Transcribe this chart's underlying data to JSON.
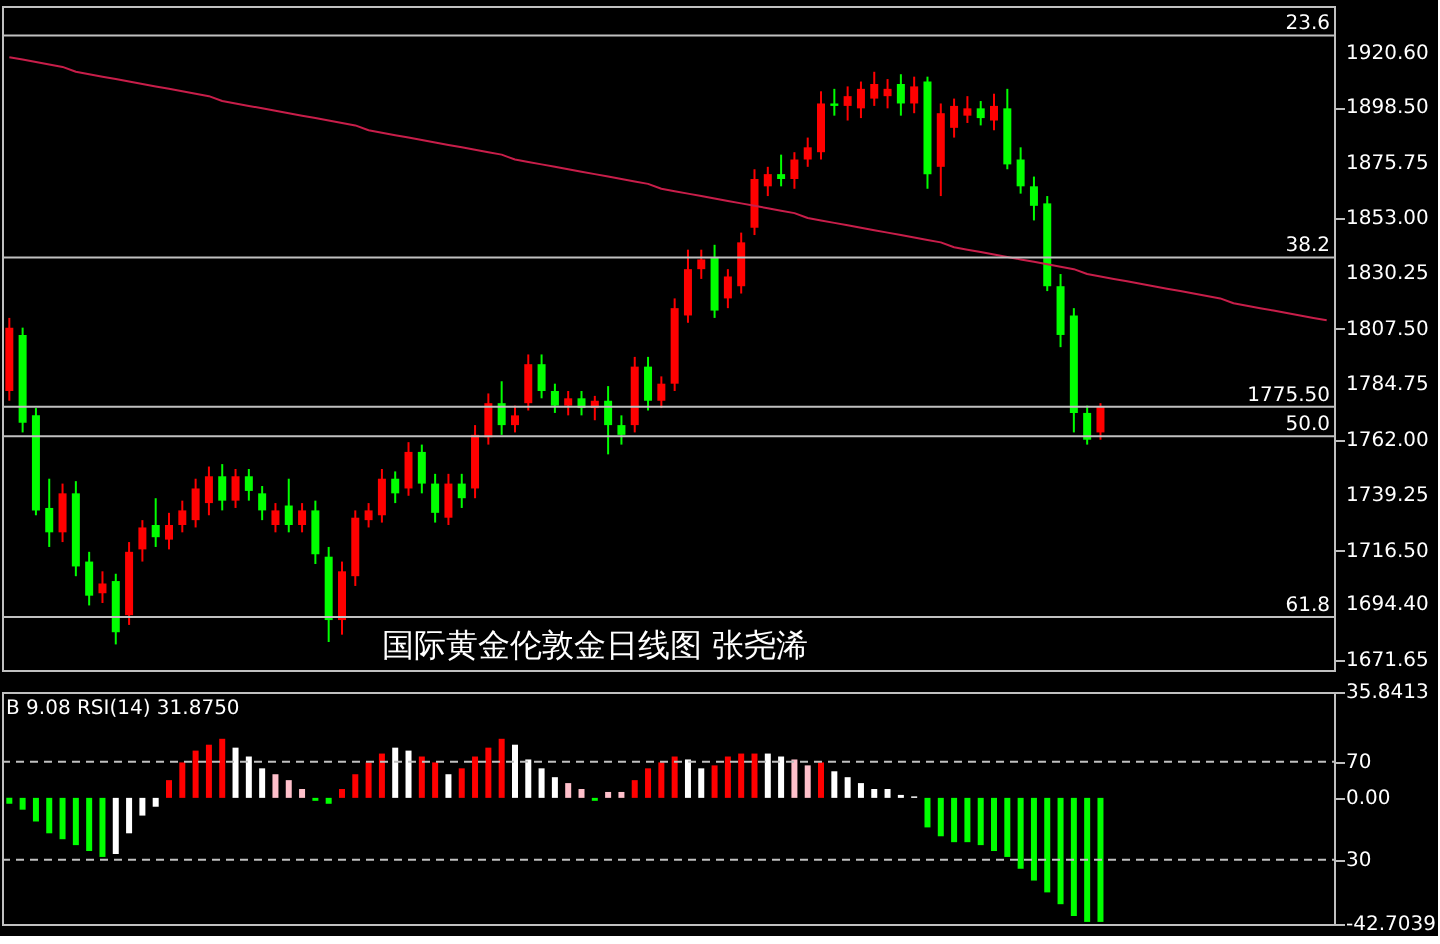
{
  "chart_data": [
    {
      "type": "candlestick",
      "categories": [
        null,
        null,
        null,
        null,
        null,
        null,
        null,
        null,
        null,
        null,
        null,
        null,
        null,
        null,
        null,
        null,
        null,
        null,
        null,
        null,
        null,
        null,
        null,
        null,
        null,
        null,
        null,
        null,
        null,
        null,
        null,
        null,
        null,
        null,
        null,
        null,
        null,
        null,
        null,
        null,
        null,
        null,
        null,
        null,
        null,
        null,
        null,
        null,
        null,
        null,
        null,
        null,
        null,
        null,
        null,
        null,
        null,
        null,
        null,
        null,
        null,
        null,
        null,
        null,
        null,
        null,
        null,
        null,
        null,
        null,
        null,
        null,
        null,
        null,
        null,
        null,
        null,
        null,
        null,
        null,
        null,
        null,
        null,
        null,
        null,
        null,
        null,
        null,
        null,
        null,
        null,
        null,
        null,
        null,
        null,
        null,
        null,
        null,
        null,
        null
      ],
      "ohlc": [
        [
          1782,
          1812,
          1778,
          1808
        ],
        [
          1805,
          1808,
          1765,
          1769
        ],
        [
          1772,
          1775,
          1731,
          1733
        ],
        [
          1734,
          1746,
          1718,
          1724
        ],
        [
          1724,
          1744,
          1720,
          1740
        ],
        [
          1740,
          1745,
          1706,
          1710
        ],
        [
          1712,
          1716,
          1694,
          1698
        ],
        [
          1699,
          1708,
          1695,
          1703
        ],
        [
          1704,
          1707,
          1678,
          1683
        ],
        [
          1690,
          1720,
          1686,
          1716
        ],
        [
          1717,
          1729,
          1712,
          1726
        ],
        [
          1727,
          1738,
          1718,
          1722
        ],
        [
          1721,
          1732,
          1717,
          1727
        ],
        [
          1727,
          1737,
          1724,
          1733
        ],
        [
          1729,
          1746,
          1726,
          1742
        ],
        [
          1736,
          1751,
          1731,
          1747
        ],
        [
          1747,
          1752,
          1733,
          1737
        ],
        [
          1737,
          1750,
          1734,
          1747
        ],
        [
          1747,
          1750,
          1737,
          1741
        ],
        [
          1740,
          1743,
          1729,
          1733
        ],
        [
          1727,
          1736,
          1724,
          1733
        ],
        [
          1735,
          1746,
          1724,
          1727
        ],
        [
          1727,
          1736,
          1724,
          1733
        ],
        [
          1733,
          1737,
          1711,
          1715
        ],
        [
          1714,
          1718,
          1679,
          1688
        ],
        [
          1688,
          1712,
          1682,
          1708
        ],
        [
          1706,
          1733,
          1702,
          1730
        ],
        [
          1729,
          1736,
          1726,
          1733
        ],
        [
          1731,
          1750,
          1728,
          1746
        ],
        [
          1746,
          1749,
          1736,
          1740
        ],
        [
          1742,
          1761,
          1739,
          1757
        ],
        [
          1757,
          1760,
          1740,
          1744
        ],
        [
          1744,
          1748,
          1728,
          1732
        ],
        [
          1730,
          1748,
          1727,
          1744
        ],
        [
          1744,
          1748,
          1734,
          1738
        ],
        [
          1742,
          1768,
          1738,
          1764
        ],
        [
          1763,
          1781,
          1760,
          1777
        ],
        [
          1777,
          1786,
          1764,
          1768
        ],
        [
          1768,
          1776,
          1765,
          1772
        ],
        [
          1777,
          1797,
          1774,
          1793
        ],
        [
          1793,
          1797,
          1779,
          1782
        ],
        [
          1782,
          1785,
          1773,
          1776
        ],
        [
          1776,
          1782,
          1772,
          1779
        ],
        [
          1779,
          1782,
          1772,
          1775
        ],
        [
          1775,
          1780,
          1770,
          1778
        ],
        [
          1778,
          1784,
          1756,
          1768
        ],
        [
          1768,
          1772,
          1760,
          1764
        ],
        [
          1768,
          1796,
          1765,
          1792
        ],
        [
          1792,
          1796,
          1774,
          1778
        ],
        [
          1778,
          1788,
          1775,
          1785
        ],
        [
          1785,
          1820,
          1782,
          1816
        ],
        [
          1813,
          1840,
          1810,
          1832
        ],
        [
          1832,
          1840,
          1828,
          1836
        ],
        [
          1837,
          1842,
          1812,
          1815
        ],
        [
          1820,
          1832,
          1816,
          1829
        ],
        [
          1825,
          1847,
          1822,
          1843
        ],
        [
          1849,
          1873,
          1846,
          1869
        ],
        [
          1866,
          1874,
          1862,
          1871
        ],
        [
          1871,
          1879,
          1866,
          1869
        ],
        [
          1869,
          1880,
          1865,
          1877
        ],
        [
          1877,
          1886,
          1874,
          1882
        ],
        [
          1880,
          1905,
          1877,
          1900
        ],
        [
          1900,
          1906,
          1895,
          1899
        ],
        [
          1899,
          1907,
          1893,
          1903
        ],
        [
          1898,
          1909,
          1894,
          1906
        ],
        [
          1902,
          1913,
          1899,
          1908
        ],
        [
          1903,
          1910,
          1898,
          1906
        ],
        [
          1908,
          1912,
          1895,
          1900
        ],
        [
          1900,
          1911,
          1896,
          1907
        ],
        [
          1909,
          1911,
          1865,
          1871
        ],
        [
          1874,
          1900,
          1862,
          1896
        ],
        [
          1890,
          1902,
          1886,
          1899
        ],
        [
          1895,
          1903,
          1892,
          1898
        ],
        [
          1898,
          1901,
          1891,
          1894
        ],
        [
          1893,
          1904,
          1889,
          1899
        ],
        [
          1898,
          1906,
          1873,
          1875
        ],
        [
          1877,
          1882,
          1863,
          1866
        ],
        [
          1866,
          1870,
          1852,
          1858
        ],
        [
          1859,
          1862,
          1823,
          1825
        ],
        [
          1825,
          1830,
          1800,
          1805
        ],
        [
          1813,
          1816,
          1765,
          1773
        ],
        [
          1773,
          1776,
          1760,
          1762
        ],
        [
          1765,
          1777,
          1762,
          1775.5
        ],
        null,
        null,
        null,
        null,
        null,
        null,
        null,
        null,
        null,
        null,
        null,
        null,
        null,
        null,
        null,
        null,
        null
      ],
      "series": [
        {
          "type": "line",
          "color": "#c81e4a",
          "values": [
            1919,
            1918,
            1917,
            1916,
            1915,
            1913,
            1912,
            1911,
            1910,
            1909,
            1908,
            1907,
            1906,
            1905,
            1904,
            1903,
            1901,
            1900,
            1899,
            1898,
            1897,
            1896,
            1895,
            1894,
            1893,
            1892,
            1891,
            1889,
            1888,
            1887,
            1886,
            1885,
            1884,
            1883,
            1882,
            1881,
            1880,
            1879,
            1877,
            1876,
            1875,
            1874,
            1873,
            1872,
            1871,
            1870,
            1869,
            1868,
            1867,
            1865,
            1864,
            1863,
            1862,
            1861,
            1860,
            1859,
            1858,
            1857,
            1856,
            1855,
            1853,
            1852,
            1851,
            1850,
            1849,
            1848,
            1847,
            1846,
            1845,
            1844,
            1843,
            1841,
            1840,
            1839,
            1838,
            1837,
            1836,
            1835,
            1834,
            1833,
            1832,
            1830,
            1829,
            1828,
            1827,
            1826,
            1825,
            1824,
            1823,
            1822,
            1821,
            1820,
            1818,
            1817,
            1816,
            1815,
            1814,
            1813,
            1812,
            1811
          ]
        }
      ],
      "ylim": [
        1667.5,
        1940
      ],
      "yticks": [
        {
          "value": 1920.6,
          "label": "1920.60"
        },
        {
          "value": 1898.5,
          "label": "1898.50"
        },
        1875.75,
        {
          "value": 1853,
          "label": "1853.00"
        },
        1830.25,
        {
          "value": 1807.5,
          "label": "1807.50"
        },
        1784.75,
        {
          "value": 1762,
          "label": "1762.00"
        },
        1739.25,
        {
          "value": 1716.5,
          "label": "1716.50"
        },
        {
          "value": 1694.4,
          "label": "1694.40"
        },
        1671.65
      ],
      "tick_labels": "y",
      "ref_lines": [
        {
          "axis": "y",
          "value": 1927.9,
          "color": "#c0c0c0"
        },
        {
          "axis": "y",
          "value": 1836.8,
          "color": "#c0c0c0"
        },
        {
          "axis": "y",
          "value": 1775.5,
          "label": "1775.50",
          "color": "#c0c0c0"
        },
        {
          "axis": "y",
          "value": 1763.4,
          "color": "#c0c0c0"
        },
        {
          "axis": "y",
          "value": 1689.3,
          "color": "#c0c0c0"
        }
      ],
      "annotations": [
        "国际黄金伦敦金日线图 张尧浠",
        {
          "text": "23.6",
          "y": 1927.9
        },
        {
          "text": "38.2",
          "y": 1836.8
        },
        {
          "text": "50.0",
          "y": 1763.4
        },
        {
          "text": "61.8",
          "y": 1689.3
        }
      ]
    },
    {
      "type": "bar",
      "categories": [
        null,
        null,
        null,
        null,
        null,
        null,
        null,
        null,
        null,
        null,
        null,
        null,
        null,
        null,
        null,
        null,
        null,
        null,
        null,
        null,
        null,
        null,
        null,
        null,
        null,
        null,
        null,
        null,
        null,
        null,
        null,
        null,
        null,
        null,
        null,
        null,
        null,
        null,
        null,
        null,
        null,
        null,
        null,
        null,
        null,
        null,
        null,
        null,
        null,
        null,
        null,
        null,
        null,
        null,
        null,
        null,
        null,
        null,
        null,
        null,
        null,
        null,
        null,
        null,
        null,
        null,
        null,
        null,
        null,
        null,
        null,
        null,
        null,
        null,
        null,
        null,
        null,
        null,
        null,
        null,
        null,
        null,
        null,
        null,
        null,
        null,
        null,
        null,
        null,
        null,
        null,
        null,
        null,
        null,
        null,
        null,
        null,
        null,
        null,
        null
      ],
      "values": [
        -2,
        -4,
        -8,
        -12,
        -14,
        -16,
        -18,
        -20,
        -19,
        -12,
        -6,
        -3,
        6,
        12,
        16,
        18,
        20,
        17,
        14,
        10,
        8,
        6,
        3,
        -1,
        -2,
        3,
        8,
        12,
        15,
        17,
        16,
        14,
        12,
        8,
        10,
        14,
        17,
        20,
        18,
        13,
        10,
        7,
        5,
        3,
        -1,
        2,
        2,
        6,
        10,
        12,
        14,
        13,
        10,
        11,
        14,
        15,
        15,
        15,
        14,
        13,
        11,
        12,
        9,
        7,
        5,
        3,
        3,
        1,
        0.5,
        -10,
        -13,
        -15,
        -15,
        -16,
        -18,
        -20,
        -24,
        -28,
        -32,
        -36,
        -40,
        -42,
        -42,
        null,
        null,
        null,
        null,
        null,
        null,
        null,
        null,
        null,
        null,
        null,
        null,
        null,
        null,
        null,
        null,
        null
      ],
      "colors": [
        "#00ff00",
        "#00ff00",
        "#00ff00",
        "#00ff00",
        "#00ff00",
        "#00ff00",
        "#00ff00",
        "#00ff00",
        "#ffffff",
        "#ffffff",
        "#ffffff",
        "#ffffff",
        "#ff0000",
        "#ff0000",
        "#ff0000",
        "#ff0000",
        "#ff0000",
        "#ffffff",
        "#ffffff",
        "#ffffff",
        "#ffc0cb",
        "#ffc0cb",
        "#ffc0cb",
        "#00ff00",
        "#00ff00",
        "#ff0000",
        "#ff0000",
        "#ff0000",
        "#ff0000",
        "#ffffff",
        "#ffffff",
        "#ff0000",
        "#ff0000",
        "#ffffff",
        "#ff0000",
        "#ff0000",
        "#ff0000",
        "#ff0000",
        "#ffffff",
        "#ffffff",
        "#ffffff",
        "#ffffff",
        "#ffc0cb",
        "#ffc0cb",
        "#00ff00",
        "#ffc0cb",
        "#ffc0cb",
        "#ff0000",
        "#ff0000",
        "#ff0000",
        "#ff0000",
        "#ffffff",
        "#ffffff",
        "#ff0000",
        "#ff0000",
        "#ff0000",
        "#ff0000",
        "#ffffff",
        "#ffffff",
        "#ffc0cb",
        "#ffc0cb",
        "#ff0000",
        "#ffffff",
        "#ffffff",
        "#ffffff",
        "#ffffff",
        "#ffffff",
        "#ffffff",
        "#ffffff",
        "#00ff00",
        "#00ff00",
        "#00ff00",
        "#00ff00",
        "#00ff00",
        "#00ff00",
        "#00ff00",
        "#00ff00",
        "#00ff00",
        "#00ff00",
        "#00ff00",
        "#00ff00",
        "#00ff00",
        "#00ff00",
        null,
        null,
        null,
        null,
        null,
        null,
        null,
        null,
        null,
        null,
        null,
        null,
        null,
        null,
        null,
        null,
        null
      ],
      "ylim": [
        -42.7039,
        35.8413
      ],
      "yticks": [
        35.8413,
        {
          "value": 0,
          "label": "0.00"
        },
        -42.7039
      ],
      "tick_labels": "y",
      "y2lim": [
        3.8,
        98.5
      ],
      "y2ticks": [
        70,
        30
      ],
      "ref_lines": [
        {
          "axis": "y2",
          "value": 70,
          "color": "#c0c0c0",
          "line_style": "dashed"
        },
        {
          "axis": "y2",
          "value": 30,
          "color": "#c0c0c0",
          "line_style": "dashed"
        }
      ],
      "annotations": [
        "B 9.08  RSI(14) 31.8750"
      ]
    }
  ]
}
